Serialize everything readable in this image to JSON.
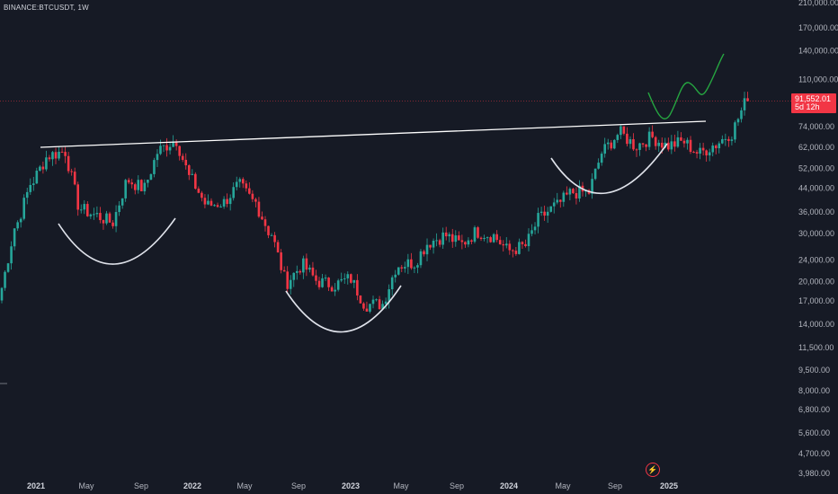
{
  "symbol": "BINANCE:BTCUSDT, 1W",
  "last_price": {
    "price": "91,552.01",
    "countdown": "5d 12h"
  },
  "brand_icon": "tradingview-lightning-icon",
  "colors": {
    "background": "#161a25",
    "bull": "#26a69a",
    "bear": "#f23645",
    "trendline": "#ffffff",
    "patterns": "#e0e3eb",
    "projection": "#26a641",
    "axis_text": "#b2b5be"
  },
  "chart_data": {
    "type": "candlestick",
    "scale": "log",
    "y_axis": {
      "position": "right",
      "ticks": [
        "210,000.00",
        "170,000.00",
        "140,000.00",
        "110,000.00",
        "91,552.01",
        "74,000.00",
        "62,000.00",
        "52,000.00",
        "44,000.00",
        "36,000.00",
        "30,000.00",
        "24,000.00",
        "20,000.00",
        "17,000.00",
        "14,000.00",
        "11,500.00",
        "9,500.00",
        "8,000.00",
        "6,800.00",
        "5,600.00",
        "4,700.00",
        "3,980.00"
      ]
    },
    "x_axis": {
      "ticks": [
        {
          "label": "2021",
          "major": true
        },
        {
          "label": "May",
          "major": false
        },
        {
          "label": "Sep",
          "major": false
        },
        {
          "label": "2022",
          "major": true
        },
        {
          "label": "May",
          "major": false
        },
        {
          "label": "Sep",
          "major": false
        },
        {
          "label": "2023",
          "major": true
        },
        {
          "label": "May",
          "major": false
        },
        {
          "label": "Sep",
          "major": false
        },
        {
          "label": "2024",
          "major": true
        },
        {
          "label": "May",
          "major": false
        },
        {
          "label": "Sep",
          "major": false
        },
        {
          "label": "2025",
          "major": true
        }
      ]
    },
    "series_approx_weekly_closes": [
      {
        "date": "2020-12",
        "close": 19000
      },
      {
        "date": "2021-01",
        "close": 33000
      },
      {
        "date": "2021-02",
        "close": 47000
      },
      {
        "date": "2021-03",
        "close": 58000
      },
      {
        "date": "2021-04",
        "close": 60000
      },
      {
        "date": "2021-05",
        "close": 37000
      },
      {
        "date": "2021-06",
        "close": 35000
      },
      {
        "date": "2021-07",
        "close": 33000
      },
      {
        "date": "2021-08",
        "close": 47000
      },
      {
        "date": "2021-09",
        "close": 44000
      },
      {
        "date": "2021-10",
        "close": 61000
      },
      {
        "date": "2021-11",
        "close": 66000
      },
      {
        "date": "2021-12",
        "close": 47000
      },
      {
        "date": "2022-01",
        "close": 38000
      },
      {
        "date": "2022-02",
        "close": 39000
      },
      {
        "date": "2022-03",
        "close": 45000
      },
      {
        "date": "2022-04",
        "close": 39000
      },
      {
        "date": "2022-05",
        "close": 30000
      },
      {
        "date": "2022-06",
        "close": 20000
      },
      {
        "date": "2022-07",
        "close": 23000
      },
      {
        "date": "2022-08",
        "close": 20000
      },
      {
        "date": "2022-09",
        "close": 19500
      },
      {
        "date": "2022-10",
        "close": 20500
      },
      {
        "date": "2022-11",
        "close": 16500
      },
      {
        "date": "2022-12",
        "close": 16600
      },
      {
        "date": "2023-01",
        "close": 23000
      },
      {
        "date": "2023-02",
        "close": 23500
      },
      {
        "date": "2023-03",
        "close": 28000
      },
      {
        "date": "2023-04",
        "close": 29500
      },
      {
        "date": "2023-05",
        "close": 27500
      },
      {
        "date": "2023-06",
        "close": 30500
      },
      {
        "date": "2023-07",
        "close": 29500
      },
      {
        "date": "2023-08",
        "close": 26000
      },
      {
        "date": "2023-09",
        "close": 27000
      },
      {
        "date": "2023-10",
        "close": 34500
      },
      {
        "date": "2023-11",
        "close": 38000
      },
      {
        "date": "2023-12",
        "close": 42500
      },
      {
        "date": "2024-01",
        "close": 42500
      },
      {
        "date": "2024-02",
        "close": 61000
      },
      {
        "date": "2024-03",
        "close": 70000
      },
      {
        "date": "2024-04",
        "close": 63000
      },
      {
        "date": "2024-05",
        "close": 67500
      },
      {
        "date": "2024-06",
        "close": 63000
      },
      {
        "date": "2024-07",
        "close": 65000
      },
      {
        "date": "2024-08",
        "close": 59000
      },
      {
        "date": "2024-09",
        "close": 63500
      },
      {
        "date": "2024-10",
        "close": 70000
      },
      {
        "date": "2024-11",
        "close": 91552
      }
    ],
    "annotations": {
      "resistance_line": "rising trendline across the 2021 and 2024 highs",
      "rounded_bottoms": 3,
      "projection": "green wavy path projecting price higher into 2025"
    }
  }
}
